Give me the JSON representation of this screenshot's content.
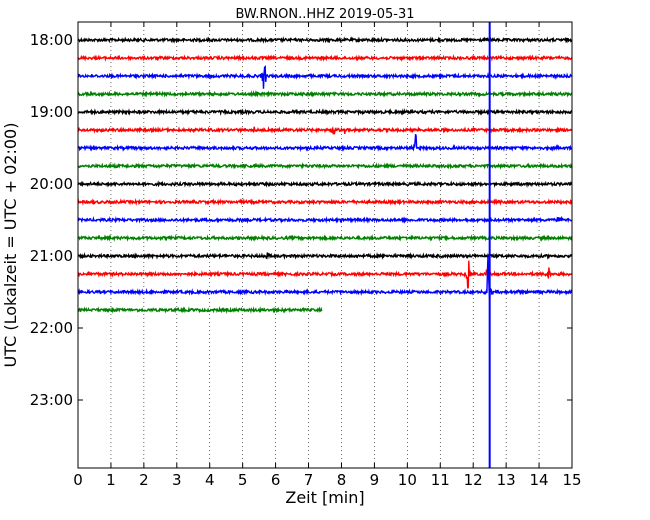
{
  "chart_data": {
    "type": "line",
    "title": "BW.RNON..HHZ 2019-05-31",
    "xlabel": "Zeit  [min]",
    "ylabel": "UTC (Lokalzeit = UTC + 02:00)",
    "xlim": [
      0,
      15
    ],
    "x_ticks": [
      "0",
      "1",
      "2",
      "3",
      "4",
      "5",
      "6",
      "7",
      "8",
      "9",
      "10",
      "11",
      "12",
      "13",
      "14",
      "15"
    ],
    "y_tick_labels": [
      "18:00",
      "19:00",
      "20:00",
      "21:00",
      "22:00",
      "23:00"
    ],
    "vertical_grid": "dotted",
    "colors": [
      "#000000",
      "#ff0000",
      "#0000ff",
      "#008000"
    ],
    "series": [
      {
        "start": "18:00",
        "end_min": 15
      },
      {
        "start": "18:15",
        "end_min": 15
      },
      {
        "start": "18:30",
        "end_min": 15,
        "events": [
          {
            "t": 5.65,
            "amp": 0.45
          }
        ]
      },
      {
        "start": "18:45",
        "end_min": 15
      },
      {
        "start": "19:00",
        "end_min": 15
      },
      {
        "start": "19:15",
        "end_min": 15,
        "events": [
          {
            "t": 5.35,
            "amp": 0.08
          },
          {
            "t": 7.75,
            "amp": 0.25
          },
          {
            "t": 8.1,
            "amp": 0.06
          }
        ]
      },
      {
        "start": "19:30",
        "end_min": 15,
        "events": [
          {
            "t": 10.25,
            "amp": 0.4
          }
        ]
      },
      {
        "start": "19:45",
        "end_min": 15,
        "events": [
          {
            "t": 5.0,
            "amp": 0.06
          }
        ]
      },
      {
        "start": "20:00",
        "end_min": 15
      },
      {
        "start": "20:15",
        "end_min": 15
      },
      {
        "start": "20:30",
        "end_min": 15,
        "events": [
          {
            "t": 14.6,
            "amp": 0.12
          }
        ]
      },
      {
        "start": "20:45",
        "end_min": 15
      },
      {
        "start": "21:00",
        "end_min": 15,
        "events": [
          {
            "t": 5.75,
            "amp": 0.1
          }
        ]
      },
      {
        "start": "21:15",
        "end_min": 15,
        "events": [
          {
            "t": 11.85,
            "amp": 0.5
          },
          {
            "t": 12.45,
            "amp": 0.35
          },
          {
            "t": 14.3,
            "amp": 0.15
          }
        ]
      },
      {
        "start": "21:30",
        "end_min": 15,
        "events": [
          {
            "t": 12.45,
            "amp": 1.0
          },
          {
            "t": 13.4,
            "amp": 0.05
          }
        ]
      },
      {
        "start": "21:45",
        "end_min": 7.4
      }
    ],
    "spike": {
      "t": 12.5,
      "color": "#0000ff"
    }
  }
}
